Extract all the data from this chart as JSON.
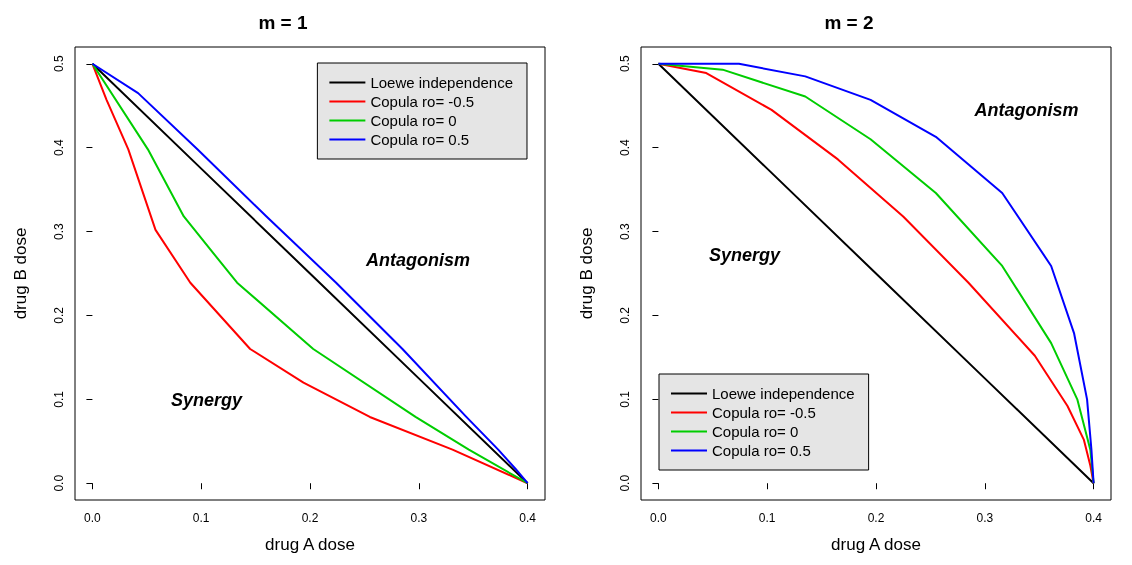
{
  "chart_data": [
    {
      "type": "line",
      "title": "m = 1",
      "xlabel": "drug A dose",
      "ylabel": "drug B dose",
      "legend": "top right",
      "grid": false,
      "xlim": [
        -0.016,
        0.416
      ],
      "ylim": [
        -0.02,
        0.52
      ],
      "xticks": [
        {
          "value": 0,
          "label": "0.0"
        },
        0.1,
        0.2,
        0.3,
        0.4
      ],
      "yticks": [
        {
          "value": 0,
          "label": "0.0"
        },
        0.1,
        0.2,
        0.3,
        0.4,
        0.5
      ],
      "annotations": [
        "Antagonism",
        "Synergy"
      ],
      "series": [
        {
          "name": "Loewe independence",
          "color": "#000000",
          "x": [
            0,
            0.1,
            0.2,
            0.3,
            0.4
          ],
          "values": [
            0.5,
            0.375,
            0.25,
            0.125,
            0
          ]
        },
        {
          "name": "Copula ro= -0.5",
          "color": "#ff0000",
          "x": [
            0,
            0.013,
            0.033,
            0.058,
            0.09,
            0.145,
            0.194,
            0.255,
            0.331,
            0.4
          ],
          "values": [
            0.5,
            0.457,
            0.398,
            0.302,
            0.239,
            0.16,
            0.12,
            0.079,
            0.04,
            0
          ]
        },
        {
          "name": "Copula ro= 0",
          "color": "#00cd00",
          "x": [
            0,
            0.051,
            0.084,
            0.133,
            0.203,
            0.297,
            0.346,
            0.4
          ],
          "values": [
            0.5,
            0.398,
            0.318,
            0.239,
            0.16,
            0.079,
            0.04,
            0
          ]
        },
        {
          "name": "Copula ro= 0.5",
          "color": "#0000ff",
          "x": [
            0,
            0.042,
            0.0965,
            0.16,
            0.224,
            0.285,
            0.343,
            0.373,
            0.389,
            0.4
          ],
          "values": [
            0.5,
            0.465,
            0.398,
            0.318,
            0.239,
            0.16,
            0.08,
            0.04,
            0.017,
            0
          ]
        }
      ]
    },
    {
      "type": "line",
      "title": "m = 2",
      "xlabel": "drug A dose",
      "ylabel": "drug B dose",
      "legend": "bottom left",
      "grid": false,
      "xlim": [
        -0.016,
        0.416
      ],
      "ylim": [
        -0.02,
        0.52
      ],
      "xticks": [
        {
          "value": 0,
          "label": "0.0"
        },
        0.1,
        0.2,
        0.3,
        0.4
      ],
      "yticks": [
        {
          "value": 0,
          "label": "0.0"
        },
        0.1,
        0.2,
        0.3,
        0.4,
        0.5
      ],
      "annotations": [
        "Antagonism",
        "Synergy"
      ],
      "series": [
        {
          "name": "Loewe independence",
          "color": "#000000",
          "x": [
            0,
            0.1,
            0.2,
            0.3,
            0.4
          ],
          "values": [
            0.5,
            0.375,
            0.25,
            0.125,
            0
          ]
        },
        {
          "name": "Copula ro= -0.5",
          "color": "#ff0000",
          "x": [
            0,
            0.044,
            0.104,
            0.165,
            0.225,
            0.285,
            0.346,
            0.376,
            0.391,
            0.397,
            0.4
          ],
          "values": [
            0.5,
            0.489,
            0.445,
            0.386,
            0.318,
            0.239,
            0.152,
            0.092,
            0.052,
            0.021,
            0
          ]
        },
        {
          "name": "Copula ro= 0",
          "color": "#00cd00",
          "x": [
            0,
            0.059,
            0.135,
            0.195,
            0.255,
            0.316,
            0.361,
            0.385,
            0.397,
            0.4
          ],
          "values": [
            0.5,
            0.493,
            0.461,
            0.41,
            0.346,
            0.259,
            0.167,
            0.1,
            0.04,
            0
          ]
        },
        {
          "name": "Copula ro= 0.5",
          "color": "#0000ff",
          "x": [
            0,
            0.074,
            0.135,
            0.195,
            0.255,
            0.316,
            0.361,
            0.382,
            0.394,
            0.398,
            0.4
          ],
          "values": [
            0.5,
            0.5,
            0.485,
            0.457,
            0.413,
            0.346,
            0.259,
            0.179,
            0.1,
            0.04,
            0
          ]
        }
      ]
    }
  ]
}
